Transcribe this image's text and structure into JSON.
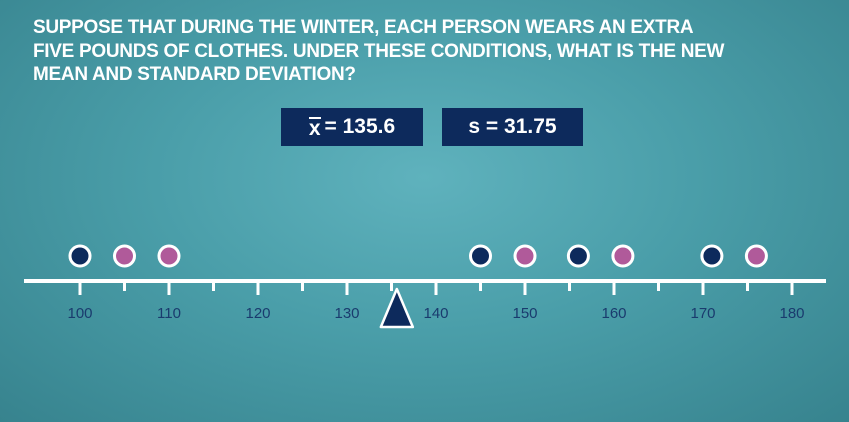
{
  "question": {
    "line1": "SUPPOSE THAT DURING THE WINTER, EACH PERSON WEARS AN EXTRA",
    "line2": "FIVE POUNDS OF CLOTHES. UNDER THESE CONDITIONS, WHAT IS THE NEW",
    "line3": "MEAN AND STANDARD DEVIATION?"
  },
  "stats": {
    "mean_symbol": "x",
    "mean_text": "= 135.6",
    "sd_text": "s = 31.75"
  },
  "colors": {
    "background": "#4a9ea9",
    "box": "#0d2a5c",
    "navy_dot": "#0d2a5c",
    "purple_dot": "#b05a9a",
    "axis": "#ffffff",
    "tick_label": "#1a3b6e",
    "mean_marker": "#0d2a5c"
  },
  "chart_data": {
    "type": "scatter",
    "xlim": [
      100,
      180
    ],
    "tick_labels": [
      "100",
      "110",
      "120",
      "130",
      "140",
      "150",
      "160",
      "170",
      "180"
    ],
    "minor_tick_step": 5,
    "mean_marker": 135.6,
    "series": [
      {
        "values": [
          100,
          145,
          156,
          171
        ]
      },
      {
        "values": [
          105,
          110,
          150,
          161,
          176
        ]
      }
    ]
  }
}
